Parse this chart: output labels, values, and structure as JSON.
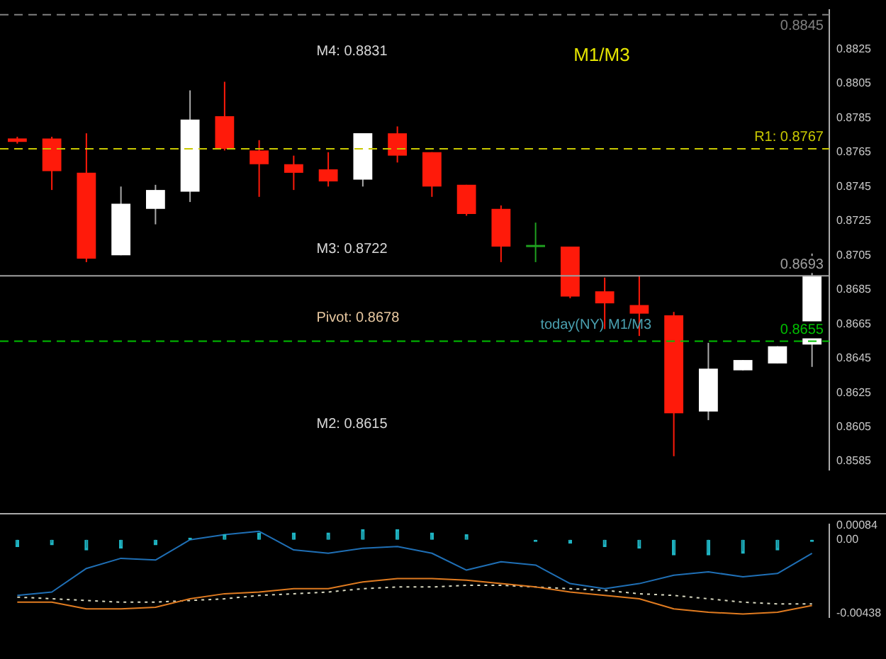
{
  "chart_data": [
    {
      "type": "candlestick",
      "categories": [
        null,
        null,
        null,
        null,
        null,
        null,
        null,
        null,
        null,
        null,
        null,
        null,
        null,
        null,
        null,
        null,
        null,
        null,
        null,
        null,
        null,
        null,
        null,
        null
      ],
      "ohlc": [
        [
          0.8773,
          0.8774,
          0.877,
          0.8771
        ],
        [
          0.8773,
          0.8774,
          0.8743,
          0.8754
        ],
        [
          0.8753,
          0.8776,
          0.8701,
          0.8703
        ],
        [
          0.8705,
          0.8745,
          0.8705,
          0.8735
        ],
        [
          0.8732,
          0.8746,
          0.8723,
          0.8743
        ],
        [
          0.8742,
          0.8801,
          0.8736,
          0.8784
        ],
        [
          0.8786,
          0.8806,
          0.8766,
          0.8767
        ],
        [
          0.8766,
          0.8772,
          0.8739,
          0.8758
        ],
        [
          0.8758,
          0.8763,
          0.8743,
          0.8753
        ],
        [
          0.8755,
          0.8765,
          0.8745,
          0.8748
        ],
        [
          0.8749,
          0.8776,
          0.8745,
          0.8776
        ],
        [
          0.8776,
          0.878,
          0.8759,
          0.8763
        ],
        [
          0.8765,
          0.8765,
          0.8739,
          0.8745
        ],
        [
          0.8746,
          0.8746,
          0.8728,
          0.8729
        ],
        [
          0.8732,
          0.8734,
          0.8701,
          0.871
        ],
        [
          0.8711,
          0.8724,
          0.8701,
          0.8711
        ],
        [
          0.871,
          0.871,
          0.868,
          0.8681
        ],
        [
          0.8684,
          0.8692,
          0.8662,
          0.8677
        ],
        [
          0.8676,
          0.8693,
          0.8658,
          0.8671
        ],
        [
          0.867,
          0.8672,
          0.8588,
          0.8613
        ],
        [
          0.8614,
          0.8654,
          0.8609,
          0.8639
        ],
        [
          0.8638,
          0.8644,
          0.8638,
          0.8644
        ],
        [
          0.8642,
          0.8652,
          0.8642,
          0.8652
        ],
        [
          0.8653,
          0.8706,
          0.864,
          0.8693
        ]
      ],
      "colors": [
        "#ff1a0a",
        "#ff1a0a",
        "#ff1a0a",
        "#ffffff",
        "#ffffff",
        "#ffffff",
        "#ff1a0a",
        "#ff1a0a",
        "#ff1a0a",
        "#ff1a0a",
        "#ffffff",
        "#ff1a0a",
        "#ff1a0a",
        "#ff1a0a",
        "#ff1a0a",
        "#1fa01f",
        "#ff1a0a",
        "#ff1a0a",
        "#ff1a0a",
        "#ff1a0a",
        "#ffffff",
        "#ffffff",
        "#ffffff",
        "#ffffff"
      ],
      "ylim": [
        0.858,
        0.8848
      ],
      "yticks": [
        0.8585,
        0.8605,
        0.8625,
        0.8645,
        0.8665,
        0.8685,
        0.8705,
        0.8725,
        0.8745,
        0.8765,
        0.8785,
        0.8805,
        0.8825
      ],
      "ref_lines": [
        {
          "axis": "y",
          "value": 0.8845,
          "label": "0.8845",
          "color": "#808080",
          "line_style": "dashed"
        },
        {
          "axis": "y",
          "value": 0.8767,
          "label": "R1: 0.8767",
          "color": "#c8c800",
          "line_style": "dashed"
        },
        {
          "axis": "y",
          "value": 0.8693,
          "label": "0.8693",
          "color": "#a0a0a0",
          "line_style": "solid"
        },
        {
          "axis": "y",
          "value": 0.8655,
          "label": "0.8655",
          "color": "#00c000",
          "line_style": "dashed"
        }
      ],
      "annotations": [
        "M4: 0.8831",
        "M3: 0.8722",
        "Pivot: 0.8678",
        "M2: 0.8615",
        "M1/M3",
        "today(NY) M1/M3"
      ]
    },
    {
      "type": "line",
      "categories": [
        null,
        null,
        null,
        null,
        null,
        null,
        null,
        null,
        null,
        null,
        null,
        null,
        null,
        null,
        null,
        null,
        null,
        null,
        null,
        null,
        null,
        null,
        null,
        null
      ],
      "series": [
        {
          "type": "bar",
          "color": "#1fb5c4",
          "values": [
            -0.0004,
            -0.0003,
            -0.0006,
            -0.0005,
            -0.0003,
            0.0001,
            0.0003,
            0.0004,
            0.0004,
            0.0004,
            0.0006,
            0.0006,
            0.0004,
            0.0003,
            0.0,
            -0.0001,
            -0.0002,
            -0.0004,
            -0.0005,
            -0.0009,
            -0.0009,
            -0.0008,
            -0.0006,
            -0.0001
          ]
        },
        {
          "color": "#1f6fb5",
          "values": [
            -0.0033,
            -0.0031,
            -0.0017,
            -0.0011,
            -0.0012,
            0.0,
            0.0003,
            0.0005,
            -0.0006,
            -0.0008,
            -0.0005,
            -0.0004,
            -0.0008,
            -0.0018,
            -0.0013,
            -0.0015,
            -0.0026,
            -0.0029,
            -0.0026,
            -0.0021,
            -0.0019,
            -0.0022,
            -0.002,
            -0.0008
          ]
        },
        {
          "color": "#e07b20",
          "values": [
            -0.0037,
            -0.0037,
            -0.0041,
            -0.0041,
            -0.004,
            -0.0035,
            -0.0032,
            -0.0031,
            -0.0029,
            -0.0029,
            -0.0025,
            -0.0023,
            -0.0023,
            -0.0024,
            -0.0026,
            -0.0028,
            -0.0031,
            -0.0033,
            -0.0035,
            -0.0041,
            -0.0043,
            -0.0044,
            -0.0043,
            -0.0039
          ]
        },
        {
          "color": "#d8d8c0",
          "line_style": "dotted",
          "values": [
            -0.0034,
            -0.0035,
            -0.0036,
            -0.0037,
            -0.0037,
            -0.0036,
            -0.0035,
            -0.0033,
            -0.0032,
            -0.0031,
            -0.0029,
            -0.0028,
            -0.0028,
            -0.0027,
            -0.0027,
            -0.0028,
            -0.0029,
            -0.003,
            -0.0032,
            -0.0033,
            -0.0035,
            -0.0037,
            -0.0038,
            -0.0038
          ]
        }
      ],
      "ylim": [
        -0.0046,
        0.00093
      ],
      "yticks": [
        {
          "value": 0.00084,
          "label": "0.00084"
        },
        {
          "value": 0,
          "label": "0.00"
        },
        {
          "value": -0.00438,
          "label": "-0.00438"
        }
      ]
    }
  ]
}
